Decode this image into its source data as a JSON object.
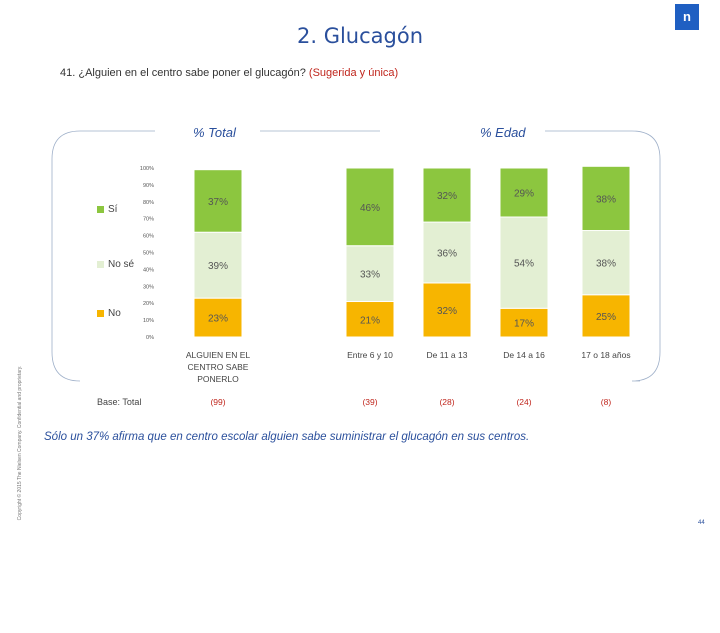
{
  "slide": {
    "title": "2. Glucagón",
    "question_main": "41. ¿Alguien en el centro sabe poner el glucagón?",
    "question_note": "(Sugerida y única)",
    "logo_text": "n",
    "section_total": "% Total",
    "section_age": "% Edad",
    "base_label": "Base: Total",
    "conclusion": "Sólo un 37% afirma que en centro escolar alguien sabe suministrar el glucagón en sus centros.",
    "copyright": "Copyright © 2015 The Nielsen Company. Confidential and proprietary.",
    "page_number": "44"
  },
  "chart_data": {
    "type": "bar",
    "stacked": true,
    "percent": true,
    "ylim": [
      0,
      100
    ],
    "y_ticks": [
      "0%",
      "10%",
      "20%",
      "30%",
      "40%",
      "50%",
      "60%",
      "70%",
      "80%",
      "90%",
      "100%"
    ],
    "categories": [
      "ALGUIEN EN EL CENTRO SABE PONERLO",
      "Entre 6 y 10",
      "De 11 a 13",
      "De 14 a 16",
      "17 o 18 años"
    ],
    "bases": [
      "(99)",
      "(39)",
      "(28)",
      "(24)",
      "(8)"
    ],
    "series": [
      {
        "name": "No",
        "color": "#f7b500",
        "values": [
          23,
          21,
          32,
          17,
          25
        ],
        "labels": [
          "23%",
          "21%",
          "32%",
          "17%",
          "25%"
        ]
      },
      {
        "name": "No sé",
        "color": "#e3efd3",
        "values": [
          39,
          33,
          36,
          54,
          38
        ],
        "labels": [
          "39%",
          "33%",
          "36%",
          "54%",
          "38%"
        ]
      },
      {
        "name": "Sí",
        "color": "#8cc63f",
        "values": [
          37,
          46,
          32,
          29,
          38
        ],
        "labels": [
          "37%",
          "46%",
          "32%",
          "29%",
          "38%"
        ]
      }
    ],
    "legend": [
      "Sí",
      "No sé",
      "No"
    ],
    "legend_position": "left"
  }
}
